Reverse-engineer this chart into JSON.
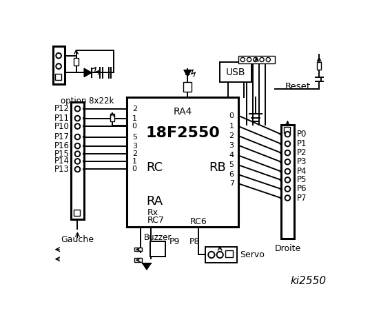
{
  "title": "ki2550",
  "bg_color": "#ffffff",
  "chip_label": "18F2550",
  "chip_sublabel": "RA4",
  "rc_label": "RC",
  "ra_label": "RA",
  "rb_label": "RB",
  "rc_pins_left": [
    "2",
    "1",
    "0",
    "5",
    "3",
    "2",
    "1",
    "0"
  ],
  "rc6_label": "RC6",
  "rb_pins_right": [
    "0",
    "1",
    "2",
    "3",
    "4",
    "5",
    "6",
    "7"
  ],
  "left_labels": [
    "P12",
    "P11",
    "P10",
    "P17",
    "P16",
    "P15",
    "P14",
    "P13"
  ],
  "right_labels": [
    "P0",
    "P1",
    "P2",
    "P3",
    "P4",
    "P5",
    "P6",
    "P7"
  ],
  "option_label": "option 8x22k",
  "usb_label": "USB",
  "reset_label": "Reset",
  "gauche_label": "Gauche",
  "droite_label": "Droite",
  "buzzer_label": "Buzzer",
  "p9_label": "P9",
  "p8_label": "P8",
  "servo_label": "Servo"
}
